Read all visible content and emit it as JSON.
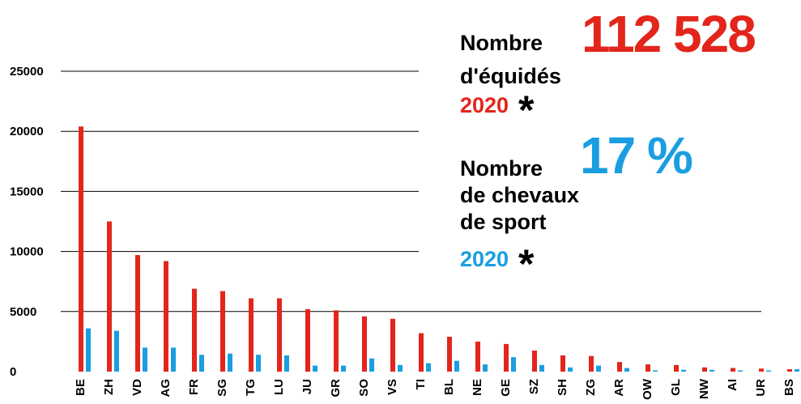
{
  "chart_data": {
    "type": "bar",
    "categories": [
      "BE",
      "ZH",
      "VD",
      "AG",
      "FR",
      "SG",
      "TG",
      "LU",
      "JU",
      "GR",
      "SO",
      "VS",
      "TI",
      "BL",
      "NE",
      "GE",
      "SZ",
      "SH",
      "ZG",
      "AR",
      "OW",
      "GL",
      "NW",
      "AI",
      "UR",
      "BS"
    ],
    "series": [
      {
        "color": "#e3251b",
        "values": [
          20400,
          12500,
          9700,
          9200,
          6900,
          6700,
          6100,
          6100,
          5200,
          5100,
          4600,
          4400,
          3200,
          2900,
          2500,
          2300,
          1750,
          1350,
          1300,
          800,
          600,
          550,
          350,
          300,
          250,
          200
        ]
      },
      {
        "color": "#1a9ee0",
        "values": [
          3600,
          3400,
          2000,
          2000,
          1400,
          1500,
          1400,
          1350,
          500,
          500,
          1100,
          550,
          700,
          900,
          600,
          1200,
          550,
          350,
          500,
          300,
          100,
          150,
          150,
          100,
          100,
          200
        ]
      }
    ],
    "ylim": [
      0,
      25000
    ],
    "yticks": [
      0,
      5000,
      10000,
      15000,
      20000,
      25000
    ],
    "grid": true,
    "annotations": [
      {
        "label": "Nombre",
        "number": "112 528",
        "lines": [
          "d'équidés"
        ],
        "year": "2020",
        "star": "*"
      },
      {
        "label": "Nombre",
        "number": "17 %",
        "lines": [
          "de chevaux",
          "de sport"
        ],
        "year": "2020",
        "star": "*"
      }
    ]
  }
}
